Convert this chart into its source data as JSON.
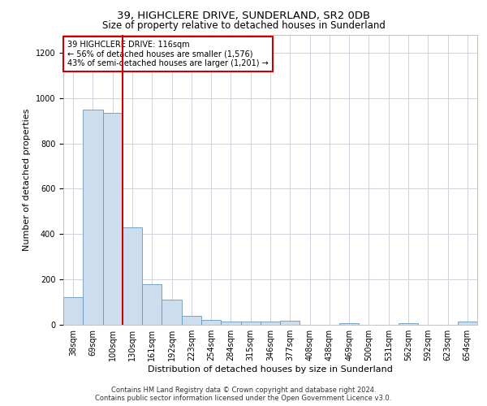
{
  "title": "39, HIGHCLERE DRIVE, SUNDERLAND, SR2 0DB",
  "subtitle": "Size of property relative to detached houses in Sunderland",
  "xlabel": "Distribution of detached houses by size in Sunderland",
  "ylabel": "Number of detached properties",
  "footer_line1": "Contains HM Land Registry data © Crown copyright and database right 2024.",
  "footer_line2": "Contains public sector information licensed under the Open Government Licence v3.0.",
  "annotation_title": "39 HIGHCLERE DRIVE: 116sqm",
  "annotation_line2": "← 56% of detached houses are smaller (1,576)",
  "annotation_line3": "43% of semi-detached houses are larger (1,201) →",
  "bar_labels": [
    "38sqm",
    "69sqm",
    "100sqm",
    "130sqm",
    "161sqm",
    "192sqm",
    "223sqm",
    "254sqm",
    "284sqm",
    "315sqm",
    "346sqm",
    "377sqm",
    "408sqm",
    "438sqm",
    "469sqm",
    "500sqm",
    "531sqm",
    "562sqm",
    "592sqm",
    "623sqm",
    "654sqm"
  ],
  "bar_values": [
    120,
    950,
    935,
    430,
    180,
    110,
    40,
    20,
    15,
    15,
    15,
    18,
    0,
    0,
    8,
    0,
    0,
    8,
    0,
    0,
    15
  ],
  "bar_color": "#ccdded",
  "bar_edge_color": "#6699bb",
  "vline_color": "#cc0000",
  "vline_x": 2.5,
  "annotation_box_edge_color": "#cc0000",
  "ylim": [
    0,
    1280
  ],
  "yticks": [
    0,
    200,
    400,
    600,
    800,
    1000,
    1200
  ],
  "grid_color": "#d0d0e0",
  "background_color": "#ffffff",
  "title_fontsize": 9.5,
  "subtitle_fontsize": 8.5,
  "ylabel_fontsize": 8,
  "xlabel_fontsize": 8,
  "tick_fontsize": 7,
  "annotation_fontsize": 7,
  "footer_fontsize": 6
}
